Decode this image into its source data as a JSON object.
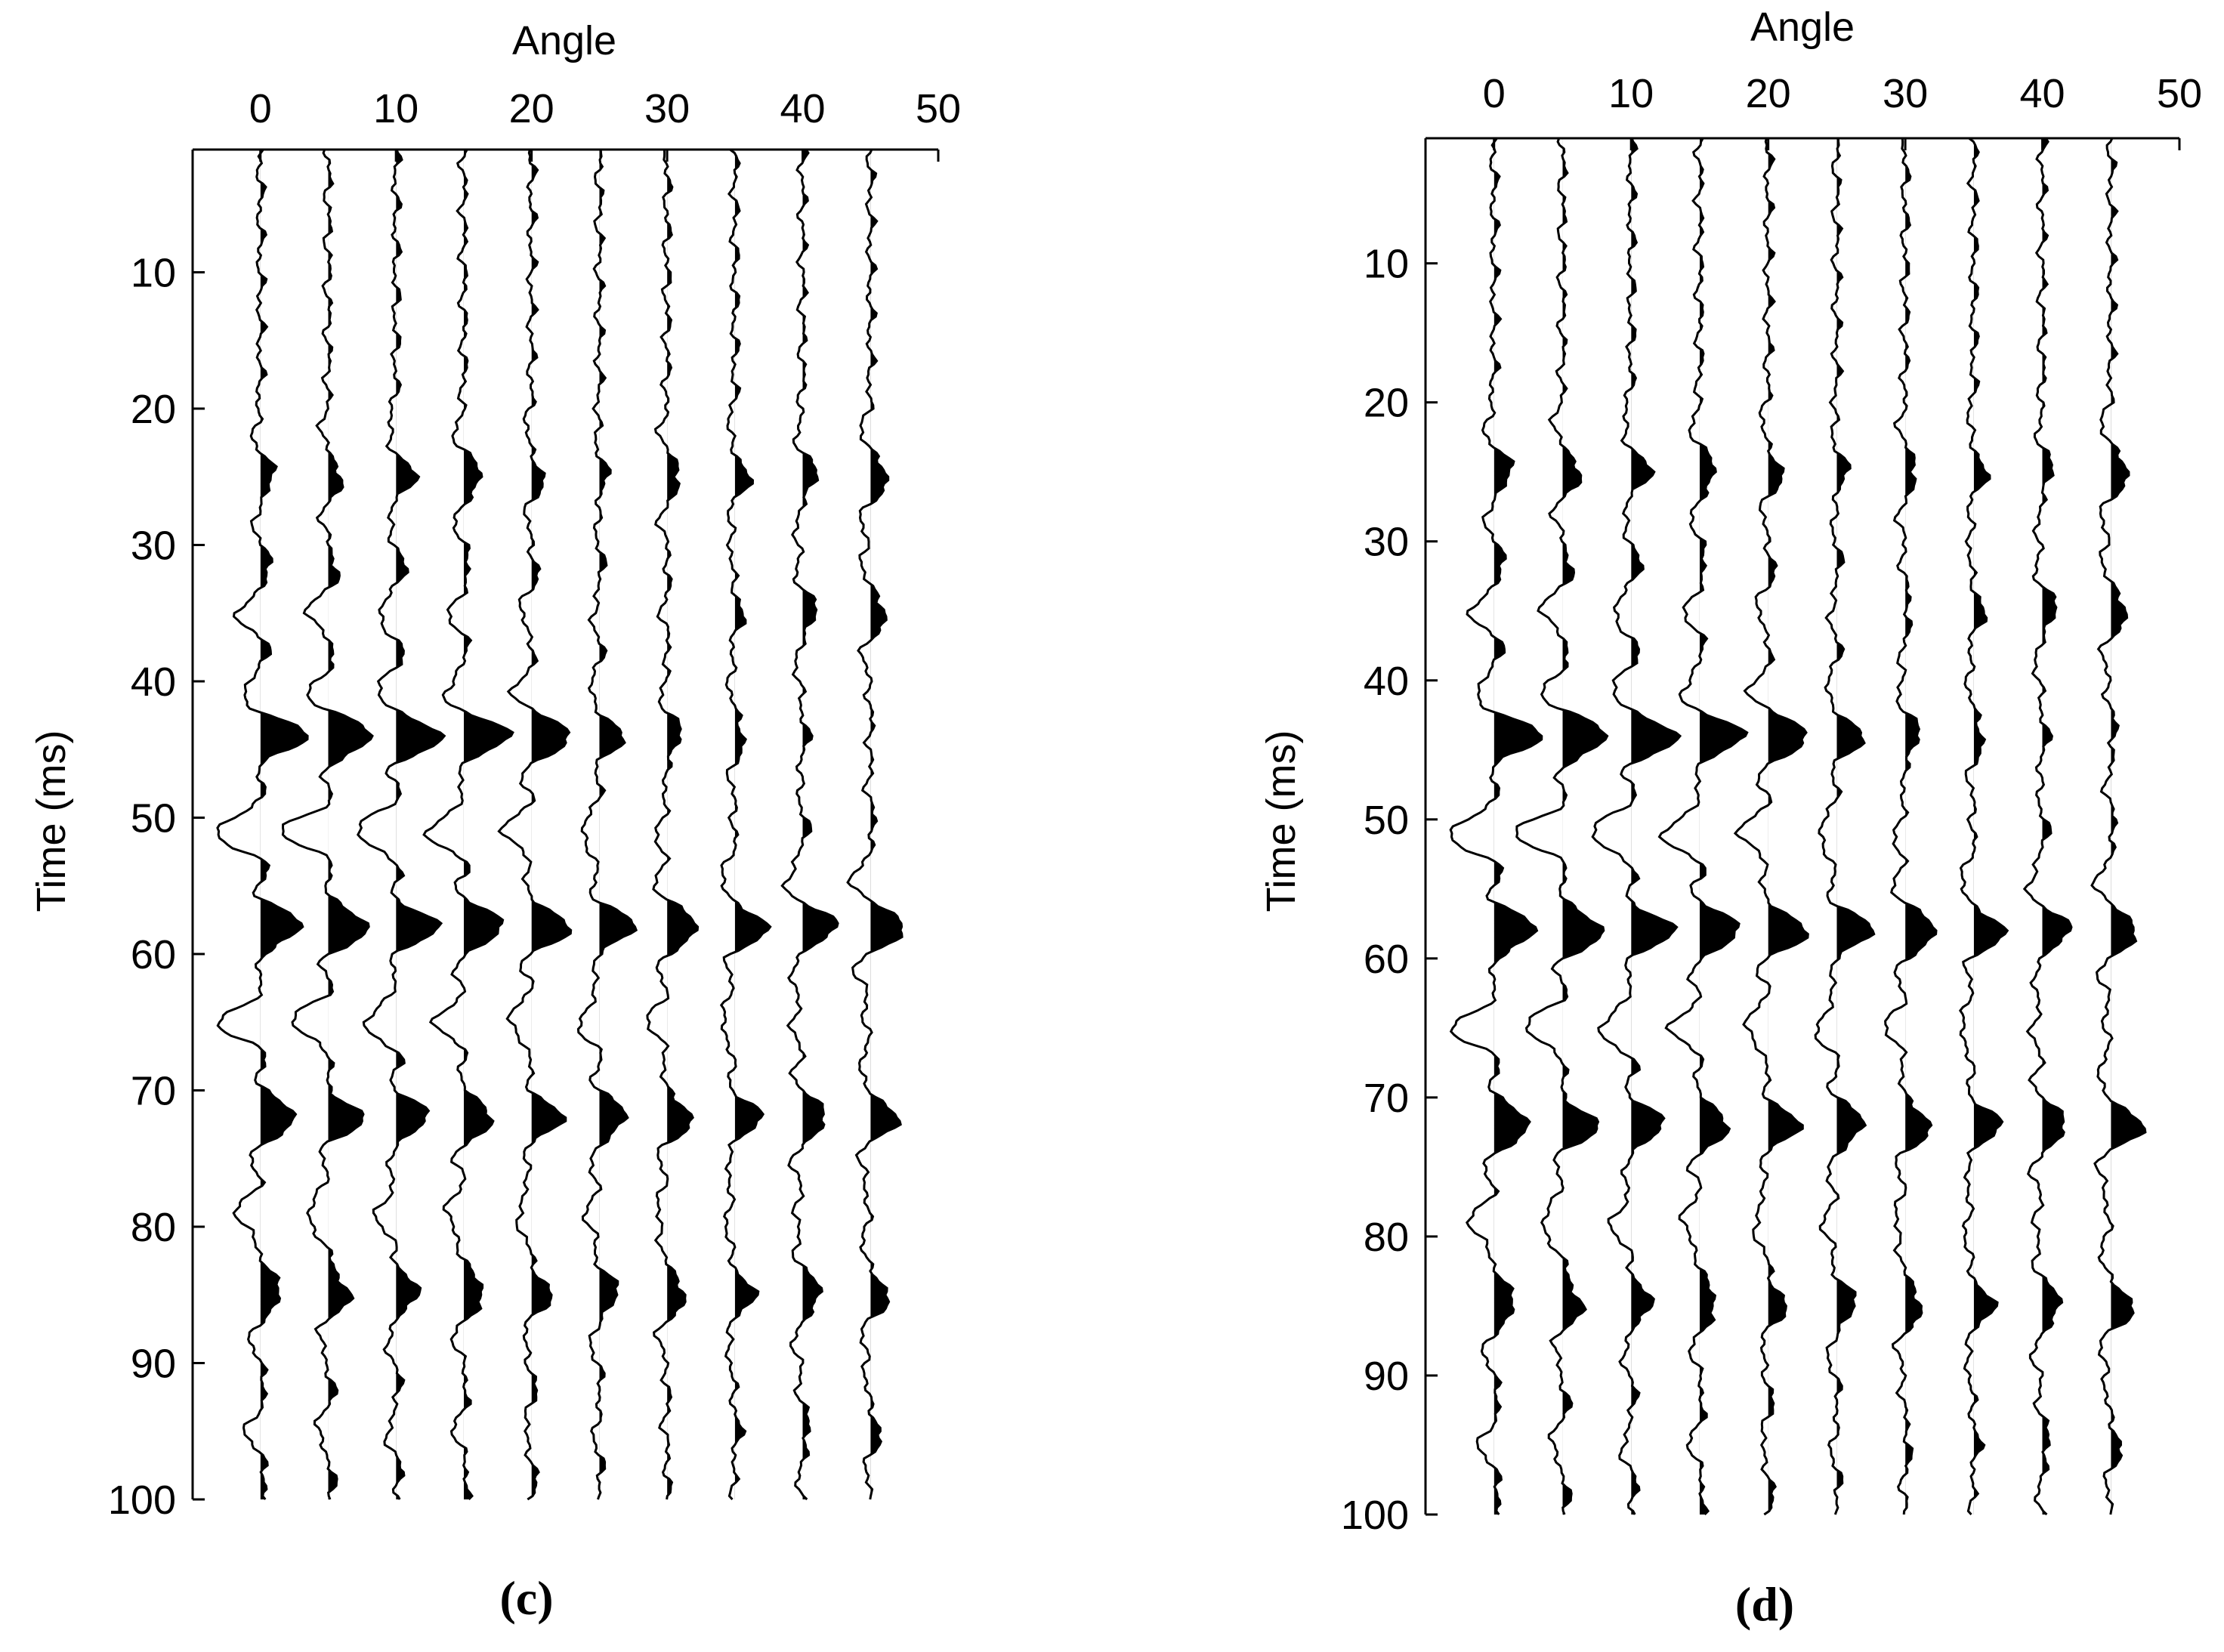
{
  "colors": {
    "trace": "#000000",
    "fill": "#000000",
    "background": "#ffffff"
  },
  "chart_data": [
    {
      "type": "wiggle",
      "panel_label": "c",
      "xlabel": "Angle",
      "ylabel": "Time (ms)",
      "xlim": [
        -5,
        50
      ],
      "ylim": [
        1,
        100
      ],
      "x_ticks": [
        0,
        10,
        20,
        30,
        40,
        50
      ],
      "y_ticks": [
        10,
        20,
        30,
        40,
        50,
        60,
        70,
        80,
        90,
        100
      ],
      "trace_angles": [
        0,
        5,
        10,
        15,
        20,
        25,
        30,
        35,
        40,
        45
      ],
      "trace_amplitude_max": 0.65,
      "events": [
        {
          "time": 25,
          "amplitudes": [
            0.3,
            0.3,
            0.4,
            0.4,
            0.25,
            0.15,
            0.3,
            0.3,
            0.3,
            0.4
          ]
        },
        {
          "time": 35,
          "amplitudes": [
            -0.5,
            -0.45,
            -0.4,
            -0.3,
            -0.25,
            -0.15,
            -0.1,
            0.15,
            0.3,
            0.35
          ]
        },
        {
          "time": 44,
          "amplitudes": [
            1.0,
            1.0,
            1.0,
            1.0,
            0.9,
            0.5,
            0.3,
            0.2,
            0.1,
            0.0
          ]
        },
        {
          "time": 51,
          "amplitudes": [
            -1.0,
            -1.0,
            -0.9,
            -0.8,
            -0.6,
            -0.4,
            -0.2,
            0.0,
            0.1,
            0.1
          ]
        },
        {
          "time": 58,
          "amplitudes": [
            0.9,
            0.9,
            0.9,
            0.9,
            0.85,
            0.75,
            0.7,
            0.7,
            0.75,
            0.8
          ]
        },
        {
          "time": 65,
          "amplitudes": [
            -0.9,
            -0.8,
            -0.7,
            -0.6,
            -0.5,
            -0.45,
            -0.4,
            -0.3,
            -0.2,
            -0.1
          ]
        },
        {
          "time": 72,
          "amplitudes": [
            0.8,
            0.75,
            0.7,
            0.65,
            0.65,
            0.6,
            0.55,
            0.55,
            0.55,
            0.6
          ]
        },
        {
          "time": 79,
          "amplitudes": [
            -0.5,
            -0.45,
            -0.4,
            -0.35,
            -0.3,
            -0.25,
            -0.2,
            -0.15,
            -0.1,
            -0.05
          ]
        },
        {
          "time": 85,
          "amplitudes": [
            0.45,
            0.45,
            0.45,
            0.45,
            0.4,
            0.4,
            0.4,
            0.4,
            0.4,
            0.4
          ]
        },
        {
          "time": 95,
          "amplitudes": [
            -0.3,
            -0.25,
            -0.2,
            -0.2,
            -0.15,
            -0.1,
            -0.05,
            0.1,
            0.15,
            0.2
          ]
        }
      ]
    },
    {
      "type": "wiggle",
      "panel_label": "d",
      "xlabel": "Angle",
      "ylabel": "Time (ms)",
      "xlim": [
        -5,
        50
      ],
      "ylim": [
        1,
        100
      ],
      "x_ticks": [
        0,
        10,
        20,
        30,
        40,
        50
      ],
      "y_ticks": [
        10,
        20,
        30,
        40,
        50,
        60,
        70,
        80,
        90,
        100
      ],
      "trace_angles": [
        0,
        5,
        10,
        15,
        20,
        25,
        30,
        35,
        40,
        45
      ],
      "trace_amplitude_max": 0.65,
      "events": [
        {
          "time": 25,
          "amplitudes": [
            0.4,
            0.4,
            0.4,
            0.35,
            0.3,
            0.2,
            0.25,
            0.25,
            0.2,
            0.4
          ]
        },
        {
          "time": 35,
          "amplitudes": [
            -0.5,
            -0.45,
            -0.4,
            -0.3,
            -0.25,
            -0.15,
            0.1,
            0.2,
            0.3,
            0.35
          ]
        },
        {
          "time": 44,
          "amplitudes": [
            1.0,
            1.0,
            1.0,
            0.95,
            0.9,
            0.55,
            0.3,
            0.2,
            0.1,
            0.1
          ]
        },
        {
          "time": 51,
          "amplitudes": [
            -1.0,
            -1.0,
            -0.9,
            -0.8,
            -0.6,
            -0.4,
            -0.2,
            0.0,
            0.1,
            0.1
          ]
        },
        {
          "time": 58,
          "amplitudes": [
            0.9,
            0.9,
            0.9,
            0.9,
            0.85,
            0.75,
            0.7,
            0.65,
            0.6,
            0.6
          ]
        },
        {
          "time": 65,
          "amplitudes": [
            -0.9,
            -0.8,
            -0.7,
            -0.6,
            -0.5,
            -0.45,
            -0.4,
            -0.3,
            -0.2,
            -0.1
          ]
        },
        {
          "time": 72,
          "amplitudes": [
            0.8,
            0.75,
            0.7,
            0.65,
            0.65,
            0.6,
            0.55,
            0.55,
            0.55,
            0.7
          ]
        },
        {
          "time": 79,
          "amplitudes": [
            -0.5,
            -0.45,
            -0.4,
            -0.35,
            -0.3,
            -0.25,
            -0.2,
            -0.15,
            -0.1,
            -0.05
          ]
        },
        {
          "time": 85,
          "amplitudes": [
            0.45,
            0.4,
            0.4,
            0.35,
            0.35,
            0.4,
            0.35,
            0.4,
            0.4,
            0.5
          ]
        },
        {
          "time": 95,
          "amplitudes": [
            -0.3,
            -0.25,
            -0.2,
            -0.2,
            -0.15,
            -0.1,
            0.1,
            0.1,
            0.15,
            0.2
          ]
        }
      ]
    }
  ]
}
